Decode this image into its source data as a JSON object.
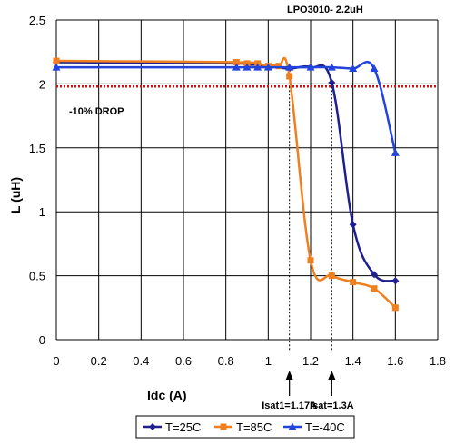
{
  "chart_data": {
    "type": "line",
    "title": "LPO3010- 2.2uH",
    "xlabel": "Idc (A)",
    "ylabel": "L (uH)",
    "xlim": [
      0,
      1.8
    ],
    "ylim": [
      0,
      2.5
    ],
    "x_ticks": [
      "0",
      "0.2",
      "0.4",
      "0.6",
      "0.8",
      "1",
      "1.2",
      "1.4",
      "1.6",
      "1.8"
    ],
    "y_ticks": [
      "0",
      "0.5",
      "1",
      "1.5",
      "2",
      "2.5"
    ],
    "grid": true,
    "legend_position": "bottom",
    "series": [
      {
        "name": "T=25C",
        "color": "#1f1f8f",
        "marker": "diamond",
        "points": [
          [
            0,
            2.17
          ],
          [
            0.85,
            2.16
          ],
          [
            0.9,
            2.15
          ],
          [
            0.95,
            2.15
          ],
          [
            1.0,
            2.14
          ],
          [
            1.1,
            2.12
          ],
          [
            1.2,
            2.13
          ],
          [
            1.3,
            2.01
          ],
          [
            1.4,
            0.9
          ],
          [
            1.5,
            0.51
          ],
          [
            1.6,
            0.46
          ]
        ]
      },
      {
        "name": "T=85C",
        "color": "#f07f1f",
        "marker": "square",
        "points": [
          [
            0,
            2.18
          ],
          [
            0.85,
            2.17
          ],
          [
            0.9,
            2.16
          ],
          [
            0.95,
            2.16
          ],
          [
            1.0,
            2.14
          ],
          [
            1.05,
            2.14
          ],
          [
            1.1,
            2.06
          ],
          [
            1.2,
            0.62
          ],
          [
            1.3,
            0.5
          ],
          [
            1.4,
            0.45
          ],
          [
            1.5,
            0.4
          ],
          [
            1.6,
            0.25
          ]
        ]
      },
      {
        "name": "T=-40C",
        "color": "#2244dd",
        "marker": "triangle",
        "points": [
          [
            0,
            2.13
          ],
          [
            0.85,
            2.13
          ],
          [
            0.9,
            2.13
          ],
          [
            0.95,
            2.13
          ],
          [
            1.0,
            2.13
          ],
          [
            1.1,
            2.13
          ],
          [
            1.2,
            2.13
          ],
          [
            1.3,
            2.13
          ],
          [
            1.4,
            2.12
          ],
          [
            1.5,
            2.12
          ],
          [
            1.6,
            1.46
          ]
        ]
      }
    ],
    "reference_line": {
      "y": 1.98,
      "label": "-10% DROP",
      "color": "#cc1111"
    },
    "annotations": [
      {
        "x": 1.1,
        "label": "Isat1=1.17A"
      },
      {
        "x": 1.3,
        "label": "Isat=1.3A"
      }
    ]
  }
}
